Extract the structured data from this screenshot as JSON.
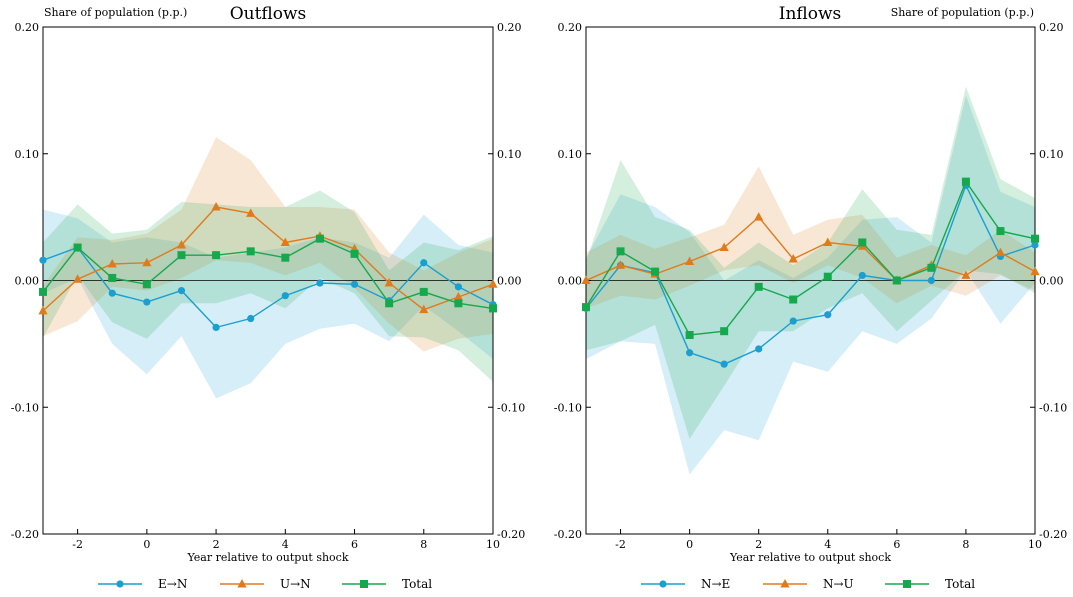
{
  "chart_data": [
    {
      "type": "line",
      "title": "Outflows",
      "ylabel": "Share of population (p.p.)",
      "xlabel": "Year relative to output shock",
      "x": [
        -3,
        -2,
        -1,
        0,
        1,
        2,
        3,
        4,
        5,
        6,
        7,
        8,
        9,
        10
      ],
      "xlim": [
        -3,
        10
      ],
      "ylim": [
        -0.2,
        0.2
      ],
      "xticks": [
        "-2",
        "0",
        "2",
        "4",
        "6",
        "8",
        "10"
      ],
      "xtick_values": [
        -2,
        0,
        2,
        4,
        6,
        8,
        10
      ],
      "yticks": [
        "-0.20",
        "-0.10",
        "0.00",
        "0.10",
        "0.20"
      ],
      "ytick_values": [
        -0.2,
        -0.1,
        0.0,
        0.1,
        0.2
      ],
      "series": [
        {
          "name": "E→N",
          "color": "#1a9fd0",
          "marker": "circle",
          "values": [
            0.016,
            0.026,
            -0.01,
            -0.017,
            -0.008,
            -0.037,
            -0.03,
            -0.012,
            -0.002,
            -0.003,
            -0.016,
            0.014,
            -0.005,
            -0.019
          ],
          "lower": [
            -0.01,
            0.002,
            -0.05,
            -0.074,
            -0.044,
            -0.093,
            -0.081,
            -0.05,
            -0.038,
            -0.034,
            -0.048,
            -0.02,
            -0.04,
            -0.062
          ],
          "upper": [
            0.056,
            0.049,
            0.03,
            0.034,
            0.03,
            0.018,
            0.022,
            0.026,
            0.034,
            0.03,
            0.018,
            0.052,
            0.028,
            0.022
          ]
        },
        {
          "name": "U→N",
          "color": "#e07b1d",
          "marker": "triangle",
          "values": [
            -0.024,
            0.001,
            0.013,
            0.014,
            0.028,
            0.058,
            0.053,
            0.03,
            0.035,
            0.025,
            -0.002,
            -0.023,
            -0.013,
            -0.003
          ],
          "lower": [
            -0.044,
            -0.032,
            -0.005,
            -0.008,
            0.002,
            0.016,
            0.014,
            0.004,
            0.014,
            -0.006,
            -0.034,
            -0.056,
            -0.046,
            -0.042
          ],
          "upper": [
            -0.004,
            0.034,
            0.032,
            0.037,
            0.056,
            0.113,
            0.095,
            0.058,
            0.058,
            0.056,
            0.022,
            0.008,
            0.022,
            0.033
          ]
        },
        {
          "name": "Total",
          "color": "#16a84d",
          "marker": "square",
          "values": [
            -0.009,
            0.026,
            0.002,
            -0.003,
            0.02,
            0.02,
            0.023,
            0.018,
            0.033,
            0.021,
            -0.018,
            -0.009,
            -0.018,
            -0.022
          ],
          "lower": [
            -0.045,
            0.004,
            -0.033,
            -0.046,
            -0.018,
            -0.018,
            -0.01,
            -0.022,
            0.002,
            -0.01,
            -0.044,
            -0.045,
            -0.055,
            -0.08
          ],
          "upper": [
            0.03,
            0.06,
            0.037,
            0.04,
            0.062,
            0.06,
            0.058,
            0.058,
            0.071,
            0.054,
            0.008,
            0.03,
            0.024,
            0.035
          ]
        }
      ]
    },
    {
      "type": "line",
      "title": "Inflows",
      "ylabel": "Share of population (p.p.)",
      "xlabel": "Year relative to output shock",
      "x": [
        -3,
        -2,
        -1,
        0,
        1,
        2,
        3,
        4,
        5,
        6,
        7,
        8,
        9,
        10
      ],
      "xlim": [
        -3,
        10
      ],
      "ylim": [
        -0.2,
        0.2
      ],
      "xticks": [
        "-2",
        "0",
        "2",
        "4",
        "6",
        "8",
        "10"
      ],
      "xtick_values": [
        -2,
        0,
        2,
        4,
        6,
        8,
        10
      ],
      "yticks": [
        "-0.20",
        "-0.10",
        "0.00",
        "0.10",
        "0.20"
      ],
      "ytick_values": [
        -0.2,
        -0.1,
        0.0,
        0.1,
        0.2
      ],
      "series": [
        {
          "name": "N→E",
          "color": "#1a9fd0",
          "marker": "circle",
          "values": [
            -0.022,
            0.012,
            0.006,
            -0.057,
            -0.066,
            -0.054,
            -0.032,
            -0.027,
            0.004,
            0.0,
            0.0,
            0.075,
            0.019,
            0.028
          ],
          "lower": [
            -0.062,
            -0.048,
            -0.05,
            -0.153,
            -0.118,
            -0.126,
            -0.064,
            -0.072,
            -0.04,
            -0.05,
            -0.03,
            0.008,
            -0.034,
            -0.002
          ],
          "upper": [
            0.018,
            0.068,
            0.058,
            0.038,
            0.0,
            0.016,
            0.002,
            0.018,
            0.048,
            0.05,
            0.03,
            0.146,
            0.07,
            0.058
          ]
        },
        {
          "name": "N→U",
          "color": "#e07b1d",
          "marker": "triangle",
          "values": [
            0.0,
            0.012,
            0.005,
            0.015,
            0.026,
            0.05,
            0.017,
            0.03,
            0.027,
            0.0,
            0.012,
            0.004,
            0.022,
            0.007
          ],
          "lower": [
            -0.022,
            -0.012,
            -0.015,
            -0.004,
            0.008,
            0.012,
            -0.002,
            0.012,
            0.002,
            -0.018,
            -0.004,
            -0.012,
            0.004,
            -0.008
          ],
          "upper": [
            0.022,
            0.036,
            0.025,
            0.034,
            0.044,
            0.09,
            0.036,
            0.048,
            0.052,
            0.018,
            0.028,
            0.02,
            0.04,
            0.022
          ]
        },
        {
          "name": "Total",
          "color": "#16a84d",
          "marker": "square",
          "values": [
            -0.021,
            0.023,
            0.007,
            -0.043,
            -0.04,
            -0.005,
            -0.015,
            0.003,
            0.03,
            0.0,
            0.01,
            0.078,
            0.039,
            0.033
          ],
          "lower": [
            -0.055,
            -0.048,
            -0.035,
            -0.125,
            -0.083,
            -0.04,
            -0.04,
            -0.022,
            -0.01,
            -0.04,
            -0.016,
            0.008,
            0.005,
            -0.01
          ],
          "upper": [
            0.015,
            0.095,
            0.05,
            0.04,
            0.01,
            0.03,
            0.012,
            0.03,
            0.072,
            0.04,
            0.036,
            0.153,
            0.08,
            0.065
          ]
        }
      ]
    }
  ]
}
